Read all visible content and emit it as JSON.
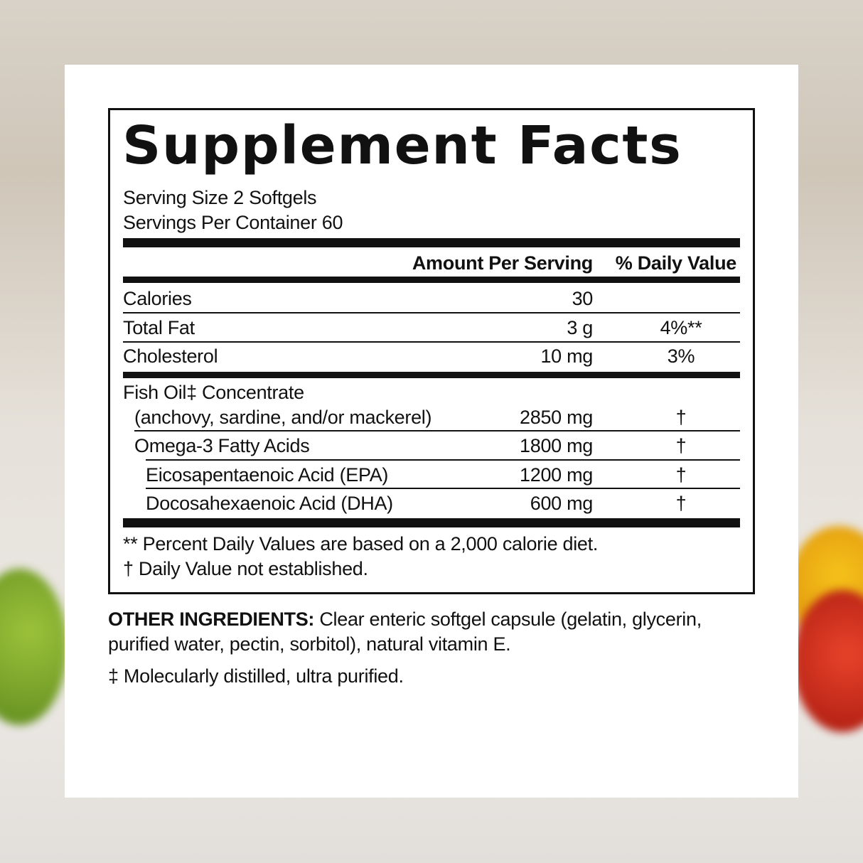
{
  "label": {
    "title": "Supplement Facts",
    "serving_size": "Serving Size 2 Softgels",
    "servings_per_container": "Servings Per Container 60",
    "col_amount": "Amount Per Serving",
    "col_dv": "% Daily Value",
    "rows": [
      {
        "name": "Calories",
        "amount": "30",
        "dv": ""
      },
      {
        "name": "Total Fat",
        "amount": "3 g",
        "dv": "4%**"
      },
      {
        "name": "Cholesterol",
        "amount": "10 mg",
        "dv": "3%"
      },
      {
        "name": "Fish Oil‡ Concentrate",
        "name2": "(anchovy, sardine, and/or mackerel)",
        "amount": "2850 mg",
        "dv": "†"
      },
      {
        "name": "Omega-3 Fatty Acids",
        "amount": "1800 mg",
        "dv": "†"
      },
      {
        "name": "Eicosapentaenoic Acid (EPA)",
        "amount": "1200 mg",
        "dv": "†"
      },
      {
        "name": "Docosahexaenoic Acid (DHA)",
        "amount": "600 mg",
        "dv": "†"
      }
    ],
    "footnote1": "** Percent Daily Values are based on a 2,000 calorie diet.",
    "footnote2": "† Daily Value not established."
  },
  "other_ingredients": {
    "heading": "OTHER INGREDIENTS:",
    "text": " Clear enteric softgel capsule (gelatin, glycerin, purified water, pectin, sorbitol), natural vitamin E.",
    "note": "‡ Molecularly distilled, ultra purified."
  }
}
